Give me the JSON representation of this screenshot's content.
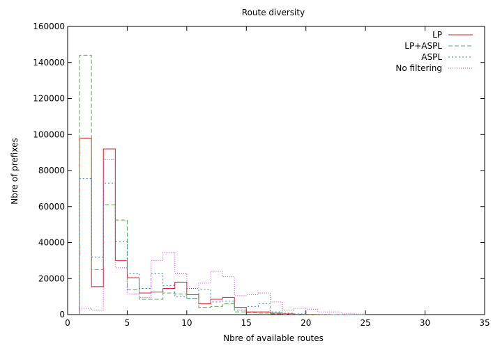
{
  "chart_data": {
    "type": "line",
    "subtype": "step-histogram",
    "title": "Route diversity",
    "xlabel": "Nbre of available routes",
    "ylabel": "Nbre of prefixes",
    "xlim": [
      0,
      35
    ],
    "ylim": [
      0,
      160000
    ],
    "xticks": [
      "0",
      "5",
      "10",
      "15",
      "20",
      "25",
      "30",
      "35"
    ],
    "yticks": [
      "0",
      "20000",
      "40000",
      "60000",
      "80000",
      "100000",
      "120000",
      "140000",
      "160000"
    ],
    "xtick_values": [
      0,
      5,
      10,
      15,
      20,
      25,
      30,
      35
    ],
    "ytick_values": [
      0,
      20000,
      40000,
      60000,
      80000,
      100000,
      120000,
      140000,
      160000
    ],
    "grid": false,
    "legend_position": "top-right",
    "bin_edges": [
      1,
      2,
      3,
      4,
      5,
      6,
      7,
      8,
      9,
      10,
      11,
      12,
      13,
      14,
      15,
      16,
      17,
      18,
      19,
      20,
      21,
      22,
      23,
      24,
      25
    ],
    "series": [
      {
        "name": "LP",
        "color": "#e41a1c",
        "dash": "",
        "values": [
          98000,
          15500,
          92000,
          30000,
          20500,
          12000,
          12500,
          14500,
          18000,
          11000,
          6000,
          8500,
          9500,
          4000,
          1500,
          1500,
          800,
          400,
          200,
          100,
          50,
          0,
          0,
          0
        ]
      },
      {
        "name": "LP+ASPL",
        "color": "#4daf4a",
        "dash": "6,3",
        "values": [
          144000,
          25000,
          61000,
          52500,
          14000,
          8500,
          8500,
          12000,
          11500,
          9000,
          4000,
          4500,
          6000,
          1500,
          1000,
          800,
          400,
          200,
          100,
          50,
          0,
          0,
          0,
          0
        ]
      },
      {
        "name": "ASPL",
        "color": "#377eb8",
        "dash": "2,3",
        "values": [
          75500,
          32000,
          73000,
          40500,
          23000,
          14500,
          23000,
          16000,
          10000,
          9000,
          14000,
          7000,
          7500,
          2500,
          4500,
          6000,
          1500,
          800,
          400,
          200,
          100,
          0,
          0,
          0
        ]
      },
      {
        "name": "No filtering",
        "color": "#cc33cc",
        "dash": "1,2",
        "values": [
          3500,
          2500,
          86000,
          26000,
          11500,
          9500,
          30000,
          34500,
          23000,
          14500,
          17500,
          24000,
          21000,
          10500,
          11000,
          12000,
          7000,
          2500,
          3500,
          3000,
          1500,
          1500,
          500,
          300
        ]
      }
    ]
  }
}
